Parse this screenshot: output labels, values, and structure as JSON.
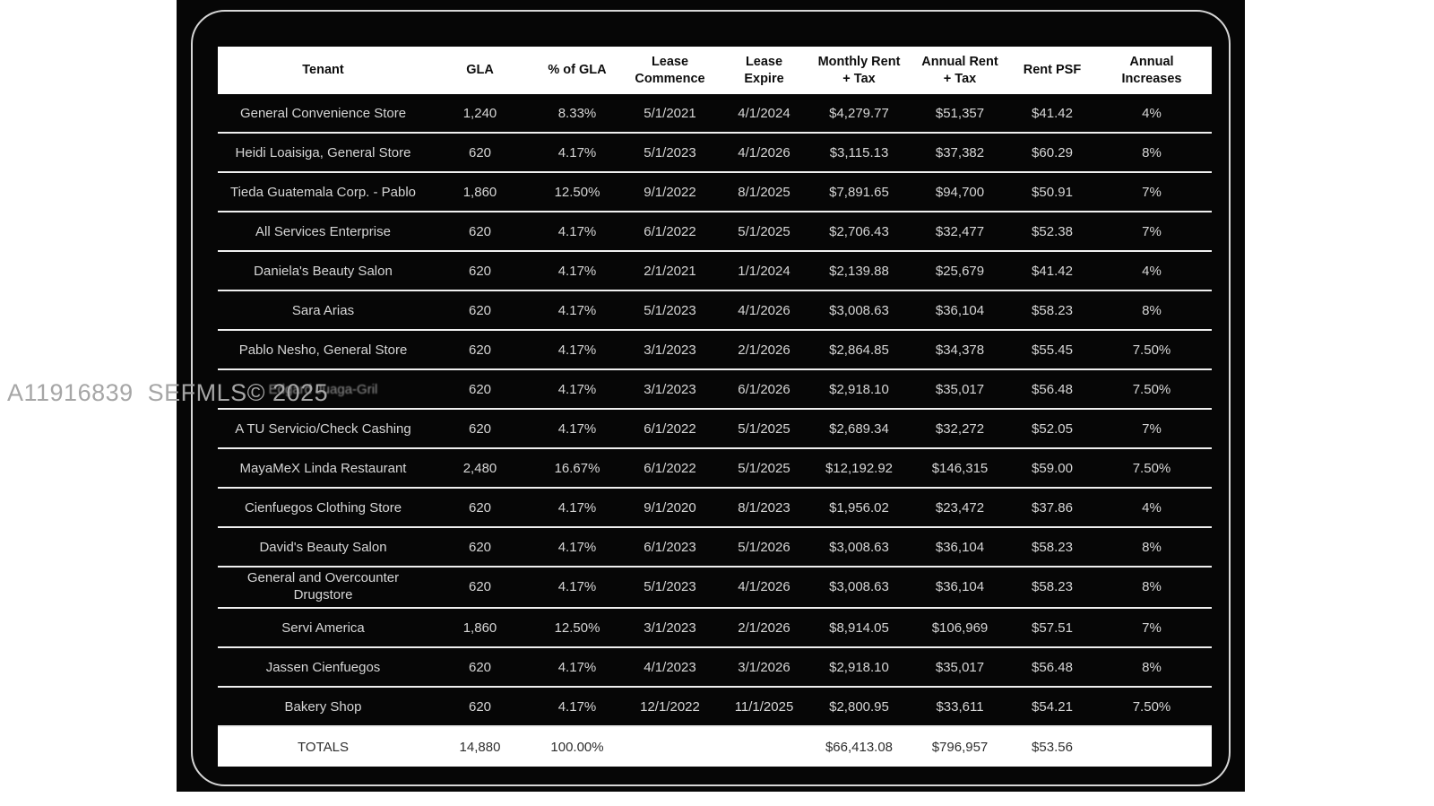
{
  "watermark": "A11916839  SEFMLS© 2025",
  "table": {
    "columns": [
      "Tenant",
      "GLA",
      "% of GLA",
      "Lease\nCommence",
      "Lease\nExpire",
      "Monthly Rent\n+ Tax",
      "Annual Rent\n+ Tax",
      "Rent PSF",
      "Annual\nIncreases"
    ],
    "rows": [
      {
        "cells": [
          "General Convenience Store",
          "1,240",
          "8.33%",
          "5/1/2021",
          "4/1/2024",
          "$4,279.77",
          "$51,357",
          "$41.42",
          "4%"
        ]
      },
      {
        "cells": [
          "Heidi Loaisiga, General Store",
          "620",
          "4.17%",
          "5/1/2023",
          "4/1/2026",
          "$3,115.13",
          "$37,382",
          "$60.29",
          "8%"
        ]
      },
      {
        "cells": [
          "Tieda Guatemala Corp. - Pablo",
          "1,860",
          "12.50%",
          "9/1/2022",
          "8/1/2025",
          "$7,891.65",
          "$94,700",
          "$50.91",
          "7%"
        ]
      },
      {
        "cells": [
          "All Services Enterprise",
          "620",
          "4.17%",
          "6/1/2022",
          "5/1/2025",
          "$2,706.43",
          "$32,477",
          "$52.38",
          "7%"
        ]
      },
      {
        "cells": [
          "Daniela's Beauty Salon",
          "620",
          "4.17%",
          "2/1/2021",
          "1/1/2024",
          "$2,139.88",
          "$25,679",
          "$41.42",
          "4%"
        ]
      },
      {
        "cells": [
          "Sara Arias",
          "620",
          "4.17%",
          "5/1/2023",
          "4/1/2026",
          "$3,008.63",
          "$36,104",
          "$58.23",
          "8%"
        ]
      },
      {
        "cells": [
          "Pablo Nesho, General Store",
          "620",
          "4.17%",
          "3/1/2023",
          "2/1/2026",
          "$2,864.85",
          "$34,378",
          "$55.45",
          "7.50%"
        ]
      },
      {
        "cells": [
          "Edgard Juaga-Gril",
          "620",
          "4.17%",
          "3/1/2023",
          "6/1/2026",
          "$2,918.10",
          "$35,017",
          "$56.48",
          "7.50%"
        ],
        "obscured": true
      },
      {
        "cells": [
          "A TU Servicio/Check Cashing",
          "620",
          "4.17%",
          "6/1/2022",
          "5/1/2025",
          "$2,689.34",
          "$32,272",
          "$52.05",
          "7%"
        ]
      },
      {
        "cells": [
          "MayaMeX Linda Restaurant",
          "2,480",
          "16.67%",
          "6/1/2022",
          "5/1/2025",
          "$12,192.92",
          "$146,315",
          "$59.00",
          "7.50%"
        ]
      },
      {
        "cells": [
          "Cienfuegos Clothing Store",
          "620",
          "4.17%",
          "9/1/2020",
          "8/1/2023",
          "$1,956.02",
          "$23,472",
          "$37.86",
          "4%"
        ]
      },
      {
        "cells": [
          "David's Beauty Salon",
          "620",
          "4.17%",
          "6/1/2023",
          "5/1/2026",
          "$3,008.63",
          "$36,104",
          "$58.23",
          "8%"
        ]
      },
      {
        "cells": [
          "General and Overcounter Drugstore",
          "620",
          "4.17%",
          "5/1/2023",
          "4/1/2026",
          "$3,008.63",
          "$36,104",
          "$58.23",
          "8%"
        ],
        "tall": true
      },
      {
        "cells": [
          "Servi America",
          "1,860",
          "12.50%",
          "3/1/2023",
          "2/1/2026",
          "$8,914.05",
          "$106,969",
          "$57.51",
          "7%"
        ]
      },
      {
        "cells": [
          "Jassen Cienfuegos",
          "620",
          "4.17%",
          "4/1/2023",
          "3/1/2026",
          "$2,918.10",
          "$35,017",
          "$56.48",
          "8%"
        ]
      },
      {
        "cells": [
          "Bakery Shop",
          "620",
          "4.17%",
          "12/1/2022",
          "11/1/2025",
          "$2,800.95",
          "$33,611",
          "$54.21",
          "7.50%"
        ]
      }
    ],
    "totals": {
      "cells": [
        "TOTALS",
        "14,880",
        "100.00%",
        "",
        "",
        "$66,413.08",
        "$796,957",
        "$53.56",
        ""
      ]
    }
  },
  "colors": {
    "panel_background": "#060606",
    "header_background": "#ffffff",
    "row_text": "#d6d6d6",
    "separator": "#efefef",
    "watermark_gray": "#a6a6a6"
  }
}
